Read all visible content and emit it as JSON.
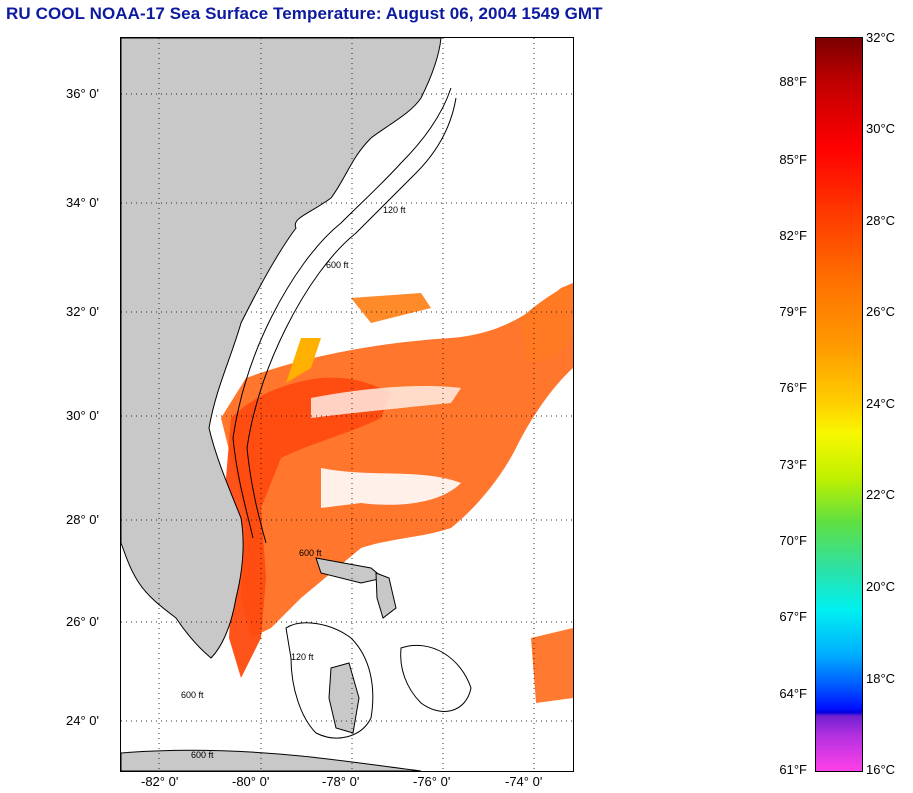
{
  "title": "RU COOL  NOAA-17  Sea Surface Temperature:  August 06, 2004 1549 GMT",
  "map": {
    "latitude_labels": [
      "36° 0'",
      "34° 0'",
      "32° 0'",
      "30° 0'",
      "28° 0'",
      "26° 0'",
      "24° 0'"
    ],
    "longitude_labels": [
      "-82° 0'",
      "-80° 0'",
      "-78° 0'",
      "-76° 0'",
      "-74° 0'"
    ],
    "isobath_labels": [
      "120 ft",
      "600 ft"
    ],
    "colors": {
      "land": "#c8c8c8",
      "no_data": "#ffffff",
      "warm_water": "#ff6a1a",
      "gulf_stream": "#ff4a10",
      "contour": "#000000",
      "grid": "#000000"
    }
  },
  "colorbar": {
    "fahrenheit_labels": [
      "88°F",
      "85°F",
      "82°F",
      "79°F",
      "76°F",
      "73°F",
      "70°F",
      "67°F",
      "64°F",
      "61°F"
    ],
    "celsius_labels": [
      "32°C",
      "30°C",
      "28°C",
      "26°C",
      "24°C",
      "22°C",
      "20°C",
      "18°C",
      "16°C"
    ],
    "range_celsius": [
      16,
      32
    ],
    "range_fahrenheit": [
      61,
      90
    ]
  }
}
